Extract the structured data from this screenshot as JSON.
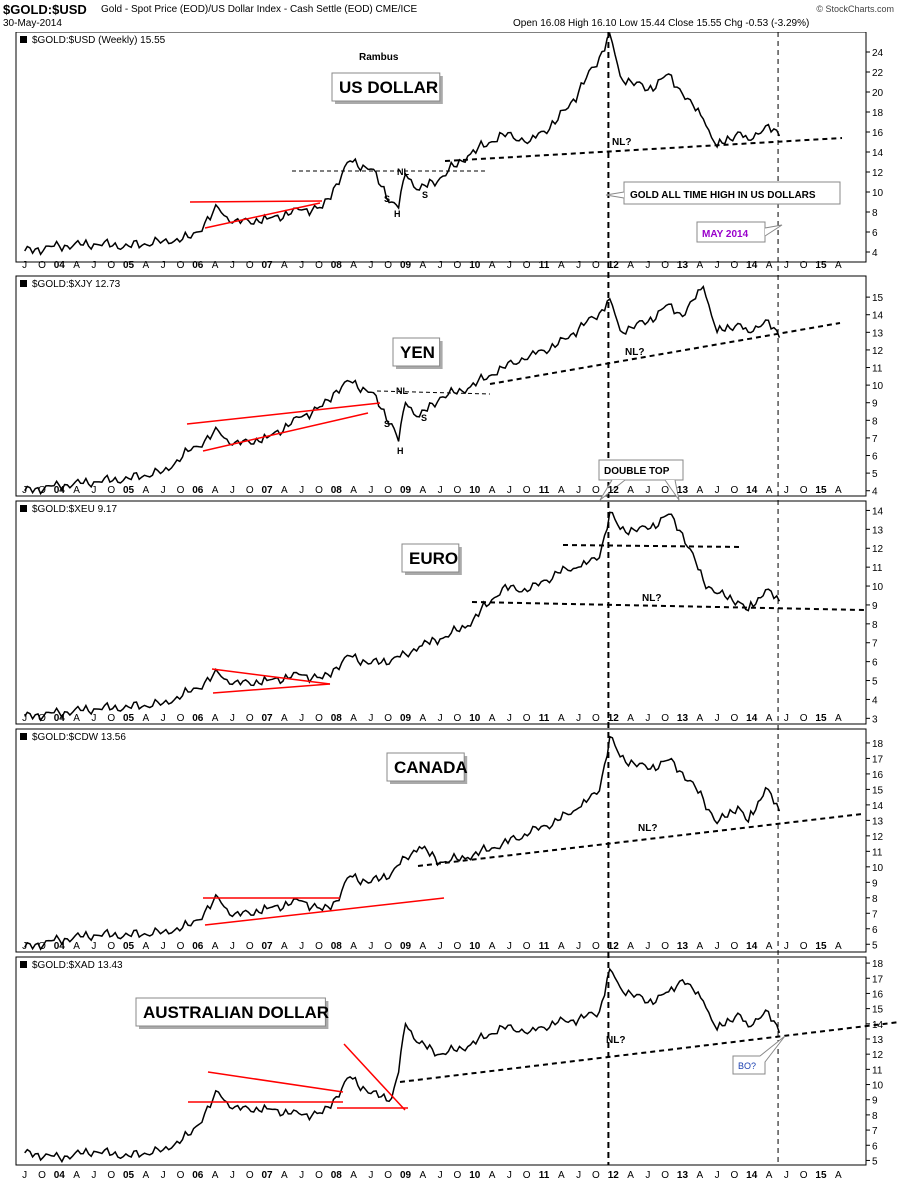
{
  "header": {
    "symbol": "$GOLD:$USD",
    "description": "Gold - Spot Price (EOD)/US Dollar Index - Cash Settle (EOD) CME/ICE",
    "date": "30-May-2014",
    "ohlc": "Open 16.08  High 16.10  Low 15.44  Close 15.55  Chg -0.53 (-3.29%)",
    "copyright": "© StockCharts.com",
    "down_color": "#cc0000"
  },
  "colors": {
    "price": "#000000",
    "trendline": "#ff0000",
    "neckline": "#000000",
    "purple": "#9900cc",
    "blue": "#1a3fb0"
  },
  "x_axis": {
    "labels": [
      "J",
      "O",
      "04",
      "A",
      "J",
      "O",
      "05",
      "A",
      "J",
      "O",
      "06",
      "A",
      "J",
      "O",
      "07",
      "A",
      "J",
      "O",
      "08",
      "A",
      "J",
      "O",
      "09",
      "A",
      "J",
      "O",
      "10",
      "A",
      "J",
      "O",
      "11",
      "A",
      "J",
      "O",
      "12",
      "A",
      "J",
      "O",
      "13",
      "A",
      "J",
      "O",
      "14",
      "A",
      "J",
      "O",
      "15",
      "A"
    ],
    "bold_labels": [
      "04",
      "05",
      "06",
      "07",
      "08",
      "09",
      "10",
      "11",
      "12",
      "13",
      "14",
      "15"
    ]
  },
  "chart_data": [
    {
      "type": "line",
      "legend": "$GOLD:$USD (Weekly) 15.55",
      "title": "US DOLLAR",
      "author": "Rambus",
      "ylim": [
        3,
        26
      ],
      "yticks": [
        4,
        6,
        8,
        10,
        12,
        14,
        16,
        18,
        20,
        22,
        24
      ],
      "points": [
        [
          2003.5,
          4.1
        ],
        [
          2004.0,
          4.6
        ],
        [
          2004.5,
          4.8
        ],
        [
          2005.0,
          4.6
        ],
        [
          2005.5,
          5.1
        ],
        [
          2005.9,
          5.4
        ],
        [
          2006.3,
          8.4
        ],
        [
          2006.5,
          6.9
        ],
        [
          2007.0,
          7.3
        ],
        [
          2007.5,
          8.2
        ],
        [
          2007.8,
          8.4
        ],
        [
          2008.0,
          10.8
        ],
        [
          2008.2,
          13.1
        ],
        [
          2008.5,
          12.3
        ],
        [
          2008.8,
          9.0
        ],
        [
          2008.9,
          8.4
        ],
        [
          2009.0,
          11.8
        ],
        [
          2009.2,
          10.2
        ],
        [
          2009.5,
          11.4
        ],
        [
          2009.9,
          13.6
        ],
        [
          2010.4,
          15.8
        ],
        [
          2010.8,
          15.1
        ],
        [
          2011.2,
          17.2
        ],
        [
          2011.5,
          20.0
        ],
        [
          2011.8,
          23.5
        ],
        [
          2011.95,
          25.8
        ],
        [
          2012.1,
          21.6
        ],
        [
          2012.5,
          20.2
        ],
        [
          2012.8,
          21.8
        ],
        [
          2013.0,
          19.8
        ],
        [
          2013.3,
          17.3
        ],
        [
          2013.5,
          14.5
        ],
        [
          2013.8,
          16.0
        ],
        [
          2013.95,
          15.2
        ],
        [
          2014.2,
          16.6
        ],
        [
          2014.4,
          15.6
        ]
      ],
      "annotations": [
        "NL",
        "S",
        "H",
        "S",
        "NL?",
        "GOLD ALL TIME HIGH IN US DOLLARS",
        "MAY 2014"
      ]
    },
    {
      "type": "line",
      "legend": "$GOLD:$XJY 12.73",
      "title": "YEN",
      "ylim": [
        3.7,
        16.2
      ],
      "yticks": [
        4,
        5,
        6,
        7,
        8,
        9,
        10,
        11,
        12,
        13,
        14,
        15
      ],
      "points": [
        [
          2003.5,
          4.0
        ],
        [
          2004.0,
          4.3
        ],
        [
          2004.5,
          4.5
        ],
        [
          2005.0,
          4.7
        ],
        [
          2005.5,
          5.1
        ],
        [
          2005.9,
          6.3
        ],
        [
          2006.3,
          7.4
        ],
        [
          2006.5,
          6.6
        ],
        [
          2007.0,
          7.0
        ],
        [
          2007.5,
          8.2
        ],
        [
          2007.8,
          8.8
        ],
        [
          2008.0,
          9.7
        ],
        [
          2008.2,
          10.2
        ],
        [
          2008.5,
          9.6
        ],
        [
          2008.8,
          7.8
        ],
        [
          2008.9,
          6.8
        ],
        [
          2009.0,
          9.0
        ],
        [
          2009.2,
          8.2
        ],
        [
          2009.5,
          9.3
        ],
        [
          2009.9,
          9.8
        ],
        [
          2010.4,
          11.0
        ],
        [
          2010.8,
          11.7
        ],
        [
          2011.2,
          12.3
        ],
        [
          2011.5,
          13.2
        ],
        [
          2011.8,
          14.1
        ],
        [
          2011.95,
          14.9
        ],
        [
          2012.1,
          13.1
        ],
        [
          2012.5,
          13.6
        ],
        [
          2012.8,
          14.6
        ],
        [
          2013.0,
          13.9
        ],
        [
          2013.3,
          15.6
        ],
        [
          2013.5,
          13.0
        ],
        [
          2013.8,
          13.5
        ],
        [
          2013.95,
          13.0
        ],
        [
          2014.2,
          13.7
        ],
        [
          2014.4,
          12.7
        ]
      ],
      "annotations": [
        "NL",
        "S",
        "H",
        "S",
        "NL?"
      ]
    },
    {
      "type": "line",
      "legend": "$GOLD:$XEU 9.17",
      "title": "EURO",
      "ylim": [
        2.7,
        14.5
      ],
      "yticks": [
        3,
        4,
        5,
        6,
        7,
        8,
        9,
        10,
        11,
        12,
        13,
        14
      ],
      "points": [
        [
          2003.5,
          3.1
        ],
        [
          2004.0,
          3.3
        ],
        [
          2004.5,
          3.5
        ],
        [
          2005.0,
          3.6
        ],
        [
          2005.5,
          3.8
        ],
        [
          2005.9,
          4.4
        ],
        [
          2006.3,
          5.4
        ],
        [
          2006.5,
          4.8
        ],
        [
          2007.0,
          5.0
        ],
        [
          2007.5,
          5.3
        ],
        [
          2007.8,
          5.1
        ],
        [
          2008.0,
          5.7
        ],
        [
          2008.2,
          6.3
        ],
        [
          2008.5,
          5.9
        ],
        [
          2008.8,
          6.1
        ],
        [
          2009.0,
          6.4
        ],
        [
          2009.2,
          6.8
        ],
        [
          2009.5,
          7.2
        ],
        [
          2009.9,
          7.9
        ],
        [
          2010.4,
          9.9
        ],
        [
          2010.8,
          9.8
        ],
        [
          2011.2,
          10.7
        ],
        [
          2011.5,
          11.0
        ],
        [
          2011.8,
          11.5
        ],
        [
          2011.95,
          13.9
        ],
        [
          2012.1,
          13.0
        ],
        [
          2012.5,
          13.0
        ],
        [
          2012.8,
          13.8
        ],
        [
          2013.0,
          12.8
        ],
        [
          2013.3,
          10.3
        ],
        [
          2013.5,
          9.6
        ],
        [
          2013.8,
          9.2
        ],
        [
          2013.95,
          8.7
        ],
        [
          2014.2,
          9.8
        ],
        [
          2014.4,
          9.2
        ]
      ],
      "annotations": [
        "DOUBLE TOP",
        "NL?"
      ]
    },
    {
      "type": "line",
      "legend": "$GOLD:$CDW 13.56",
      "title": "CANADA",
      "ylim": [
        4.5,
        18.9
      ],
      "yticks": [
        5,
        6,
        7,
        8,
        9,
        10,
        11,
        12,
        13,
        14,
        15,
        16,
        17,
        18
      ],
      "points": [
        [
          2003.5,
          4.8
        ],
        [
          2004.0,
          5.3
        ],
        [
          2004.5,
          5.6
        ],
        [
          2005.0,
          5.6
        ],
        [
          2005.5,
          5.8
        ],
        [
          2005.9,
          6.2
        ],
        [
          2006.3,
          8.0
        ],
        [
          2006.5,
          6.8
        ],
        [
          2007.0,
          7.3
        ],
        [
          2007.5,
          7.8
        ],
        [
          2007.8,
          7.2
        ],
        [
          2008.0,
          7.8
        ],
        [
          2008.2,
          9.4
        ],
        [
          2008.5,
          9.0
        ],
        [
          2008.8,
          9.6
        ],
        [
          2009.0,
          10.6
        ],
        [
          2009.2,
          11.3
        ],
        [
          2009.5,
          10.3
        ],
        [
          2009.9,
          10.6
        ],
        [
          2010.4,
          11.5
        ],
        [
          2010.8,
          12.2
        ],
        [
          2011.2,
          13.0
        ],
        [
          2011.5,
          13.8
        ],
        [
          2011.8,
          14.9
        ],
        [
          2011.95,
          18.4
        ],
        [
          2012.1,
          17.1
        ],
        [
          2012.5,
          16.3
        ],
        [
          2012.8,
          16.9
        ],
        [
          2013.0,
          16.1
        ],
        [
          2013.3,
          14.4
        ],
        [
          2013.5,
          12.8
        ],
        [
          2013.8,
          13.9
        ],
        [
          2013.95,
          12.9
        ],
        [
          2014.2,
          15.1
        ],
        [
          2014.4,
          13.6
        ]
      ],
      "annotations": [
        "NL?"
      ]
    },
    {
      "type": "line",
      "legend": "$GOLD:$XAD 13.43",
      "title": "AUSTRALIAN DOLLAR",
      "ylim": [
        4.7,
        18.4
      ],
      "yticks": [
        5,
        6,
        7,
        8,
        9,
        10,
        11,
        12,
        13,
        14,
        15,
        16,
        17,
        18
      ],
      "points": [
        [
          2003.5,
          5.5
        ],
        [
          2004.0,
          5.2
        ],
        [
          2004.5,
          5.6
        ],
        [
          2005.0,
          5.3
        ],
        [
          2005.5,
          5.7
        ],
        [
          2005.9,
          6.7
        ],
        [
          2006.3,
          9.5
        ],
        [
          2006.5,
          8.4
        ],
        [
          2007.0,
          8.4
        ],
        [
          2007.5,
          8.0
        ],
        [
          2007.8,
          8.1
        ],
        [
          2008.0,
          9.2
        ],
        [
          2008.2,
          10.5
        ],
        [
          2008.5,
          9.4
        ],
        [
          2008.8,
          9.1
        ],
        [
          2008.9,
          10.8
        ],
        [
          2009.0,
          14.0
        ],
        [
          2009.2,
          12.7
        ],
        [
          2009.5,
          12.0
        ],
        [
          2009.9,
          12.5
        ],
        [
          2010.4,
          13.8
        ],
        [
          2010.8,
          13.5
        ],
        [
          2011.2,
          14.1
        ],
        [
          2011.5,
          14.3
        ],
        [
          2011.8,
          14.8
        ],
        [
          2011.95,
          17.6
        ],
        [
          2012.1,
          16.4
        ],
        [
          2012.5,
          15.4
        ],
        [
          2012.8,
          16.1
        ],
        [
          2013.0,
          16.9
        ],
        [
          2013.3,
          15.5
        ],
        [
          2013.5,
          13.6
        ],
        [
          2013.8,
          14.7
        ],
        [
          2013.95,
          13.8
        ],
        [
          2014.2,
          14.9
        ],
        [
          2014.4,
          13.4
        ]
      ],
      "annotations": [
        "NL?",
        "BO?"
      ]
    }
  ]
}
